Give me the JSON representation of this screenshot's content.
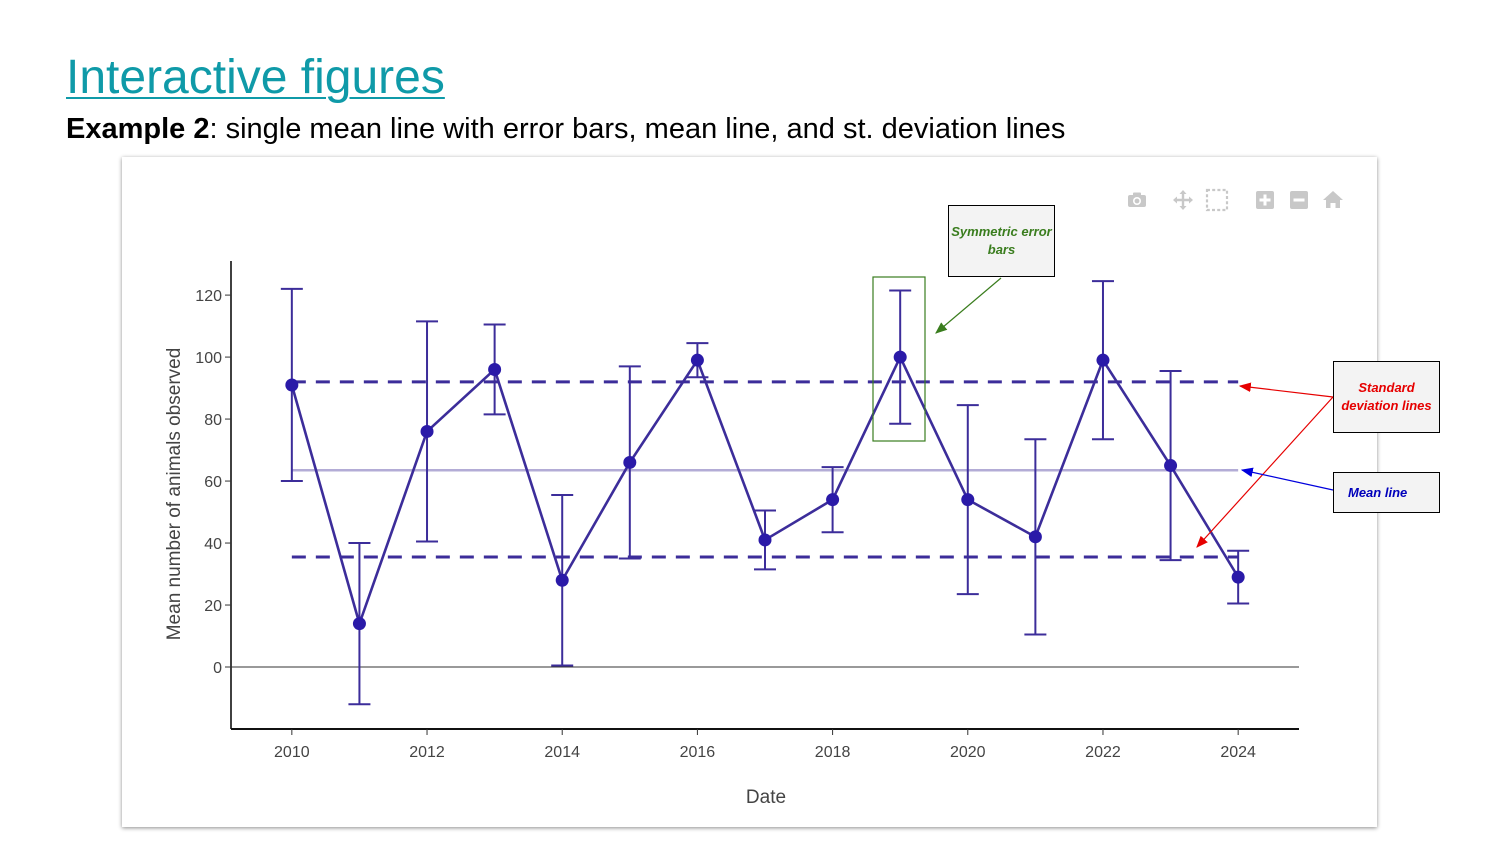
{
  "slide": {
    "title": "Interactive figures",
    "subtitle_bold": "Example 2",
    "subtitle_rest": ": single mean line with error bars, mean line, and st. deviation lines"
  },
  "modebar": {
    "icons": [
      "camera-icon",
      "pan-icon",
      "box-select-icon",
      "zoom-in-icon",
      "zoom-out-icon",
      "home-icon"
    ]
  },
  "annotations": {
    "error_bars": "Symmetric error bars",
    "sd_lines": "Standard deviation lines",
    "mean_line": "Mean line"
  },
  "colors": {
    "series": "#3c2d9a",
    "marker": "#2a1aa8",
    "mean_line": "#b3acd6",
    "green": "#3a7d1e",
    "red": "#e60000",
    "blue": "#0000dd",
    "title": "#0f9aa8"
  },
  "chart_data": {
    "type": "line",
    "xlabel": "Date",
    "ylabel": "Mean number of animals observed",
    "xlim": [
      2009.1,
      2024.9
    ],
    "ylim": [
      -20,
      131
    ],
    "x_ticks": [
      2010,
      2012,
      2014,
      2016,
      2018,
      2020,
      2022,
      2024
    ],
    "y_ticks": [
      0,
      20,
      40,
      60,
      80,
      100,
      120
    ],
    "grid": false,
    "series": [
      {
        "x": [
          2010,
          2011,
          2012,
          2013,
          2014,
          2015,
          2016,
          2017,
          2018,
          2019,
          2020,
          2021,
          2022,
          2023,
          2024
        ],
        "values": [
          91,
          14,
          76,
          96,
          28,
          66,
          99,
          41,
          54,
          100,
          54,
          42,
          99,
          65,
          29
        ],
        "error": [
          31,
          26,
          35.5,
          14.5,
          27.5,
          31,
          5.5,
          9.5,
          10.5,
          21.5,
          30.5,
          31.5,
          25.5,
          30.5,
          8.5
        ]
      }
    ],
    "mean_line": 63.5,
    "sd_lines": [
      92,
      35.5
    ]
  }
}
